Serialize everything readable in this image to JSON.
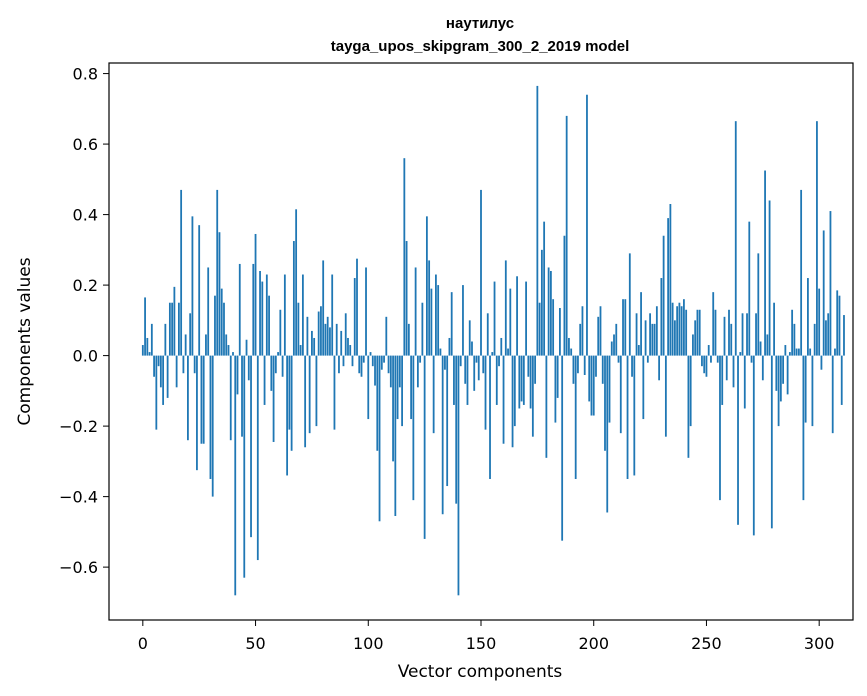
{
  "chart_data": {
    "type": "bar",
    "title": "наутилус",
    "subtitle": "tayga_upos_skipgram_300_2_2019 model",
    "xlabel": "Vector components",
    "ylabel": "Components values",
    "xlim": [
      -15,
      315
    ],
    "ylim": [
      -0.75,
      0.83
    ],
    "xticks": [
      0,
      50,
      100,
      150,
      200,
      250,
      300
    ],
    "yticks": [
      -0.6,
      -0.4,
      -0.2,
      0.0,
      0.2,
      0.4,
      0.6,
      0.8
    ],
    "ytick_labels": [
      "−0.6",
      "−0.4",
      "−0.2",
      "0.0",
      "0.2",
      "0.4",
      "0.6",
      "0.8"
    ],
    "bar_color": "#1f77b4",
    "grid": false,
    "legend": "none",
    "values": [
      0.03,
      0.165,
      0.05,
      0.01,
      0.09,
      -0.06,
      -0.21,
      -0.03,
      -0.09,
      -0.14,
      0.09,
      -0.12,
      0.15,
      0.15,
      0.195,
      -0.09,
      0.15,
      0.47,
      -0.05,
      0.06,
      -0.24,
      0.12,
      0.395,
      -0.05,
      -0.325,
      0.37,
      -0.25,
      -0.25,
      0.06,
      0.25,
      -0.35,
      -0.4,
      0.17,
      0.47,
      0.35,
      0.19,
      0.15,
      0.06,
      0.03,
      -0.24,
      0.01,
      -0.68,
      -0.11,
      0.26,
      -0.23,
      -0.63,
      0.045,
      -0.07,
      -0.515,
      0.26,
      0.345,
      -0.58,
      0.24,
      0.21,
      -0.14,
      0.23,
      0.17,
      -0.1,
      -0.245,
      -0.05,
      0.01,
      0.13,
      -0.06,
      0.23,
      -0.34,
      -0.21,
      -0.27,
      0.325,
      0.415,
      0.15,
      0.03,
      0.23,
      -0.26,
      0.11,
      -0.22,
      0.07,
      0.05,
      -0.2,
      0.125,
      0.14,
      0.27,
      0.09,
      0.11,
      0.08,
      0.23,
      -0.21,
      0.09,
      -0.05,
      0.07,
      -0.03,
      0.12,
      0.05,
      0.03,
      -0.03,
      0.22,
      0.275,
      -0.05,
      -0.06,
      -0.02,
      0.25,
      -0.18,
      0.01,
      -0.03,
      -0.085,
      -0.27,
      -0.47,
      -0.04,
      -0.02,
      0.11,
      -0.05,
      -0.09,
      -0.3,
      -0.455,
      -0.18,
      -0.09,
      -0.2,
      0.56,
      0.325,
      0.09,
      -0.18,
      -0.41,
      0.25,
      -0.09,
      -0.02,
      0.15,
      -0.52,
      0.395,
      0.27,
      0.19,
      -0.22,
      0.23,
      0.2,
      0.02,
      -0.45,
      -0.04,
      -0.37,
      0.05,
      0.18,
      -0.14,
      -0.42,
      -0.68,
      -0.03,
      0.2,
      -0.08,
      -0.14,
      0.1,
      0.04,
      -0.1,
      -0.02,
      -0.07,
      0.47,
      -0.05,
      -0.21,
      0.12,
      -0.35,
      0.01,
      0.21,
      -0.14,
      -0.03,
      0.05,
      -0.25,
      0.27,
      0.02,
      0.19,
      -0.26,
      -0.2,
      0.225,
      -0.15,
      -0.13,
      -0.14,
      0.21,
      -0.06,
      -0.15,
      -0.23,
      -0.08,
      0.765,
      0.15,
      0.3,
      0.38,
      -0.29,
      0.25,
      0.24,
      0.16,
      -0.19,
      -0.12,
      0.135,
      -0.525,
      0.34,
      0.68,
      0.05,
      0.02,
      -0.08,
      -0.35,
      -0.05,
      0.09,
      0.14,
      -0.055,
      0.74,
      -0.13,
      -0.17,
      -0.17,
      -0.06,
      0.11,
      0.14,
      -0.08,
      -0.27,
      -0.445,
      -0.19,
      0.04,
      0.06,
      0.09,
      -0.02,
      -0.22,
      0.16,
      0.16,
      -0.35,
      0.29,
      -0.06,
      -0.34,
      0.12,
      0.03,
      0.18,
      -0.18,
      0.1,
      -0.02,
      0.12,
      0.09,
      0.09,
      0.14,
      -0.07,
      0.22,
      0.34,
      -0.23,
      0.39,
      0.43,
      0.15,
      0.1,
      0.14,
      0.15,
      0.14,
      0.16,
      0.13,
      -0.29,
      -0.2,
      0.06,
      0.1,
      0.13,
      0.13,
      -0.03,
      -0.05,
      -0.06,
      0.03,
      -0.02,
      0.18,
      0.13,
      -0.02,
      -0.41,
      -0.14,
      0.11,
      -0.07,
      0.13,
      0.09,
      -0.09,
      0.665,
      -0.48,
      0.01,
      0.12,
      -0.15,
      0.12,
      0.38,
      -0.02,
      -0.51,
      0.12,
      0.29,
      0.04,
      -0.07,
      0.525,
      0.06,
      0.44,
      -0.49,
      0.15,
      -0.1,
      -0.2,
      -0.13,
      -0.08,
      0.03,
      -0.11,
      0.01,
      0.13,
      0.09,
      0.02,
      0.02,
      0.47,
      -0.41,
      -0.19,
      0.22,
      0.02,
      -0.2,
      0.09,
      0.665,
      0.19,
      -0.04,
      0.355,
      0.1,
      0.12,
      0.41,
      -0.22,
      0.02,
      0.185,
      0.17,
      -0.14,
      0.115
    ]
  }
}
